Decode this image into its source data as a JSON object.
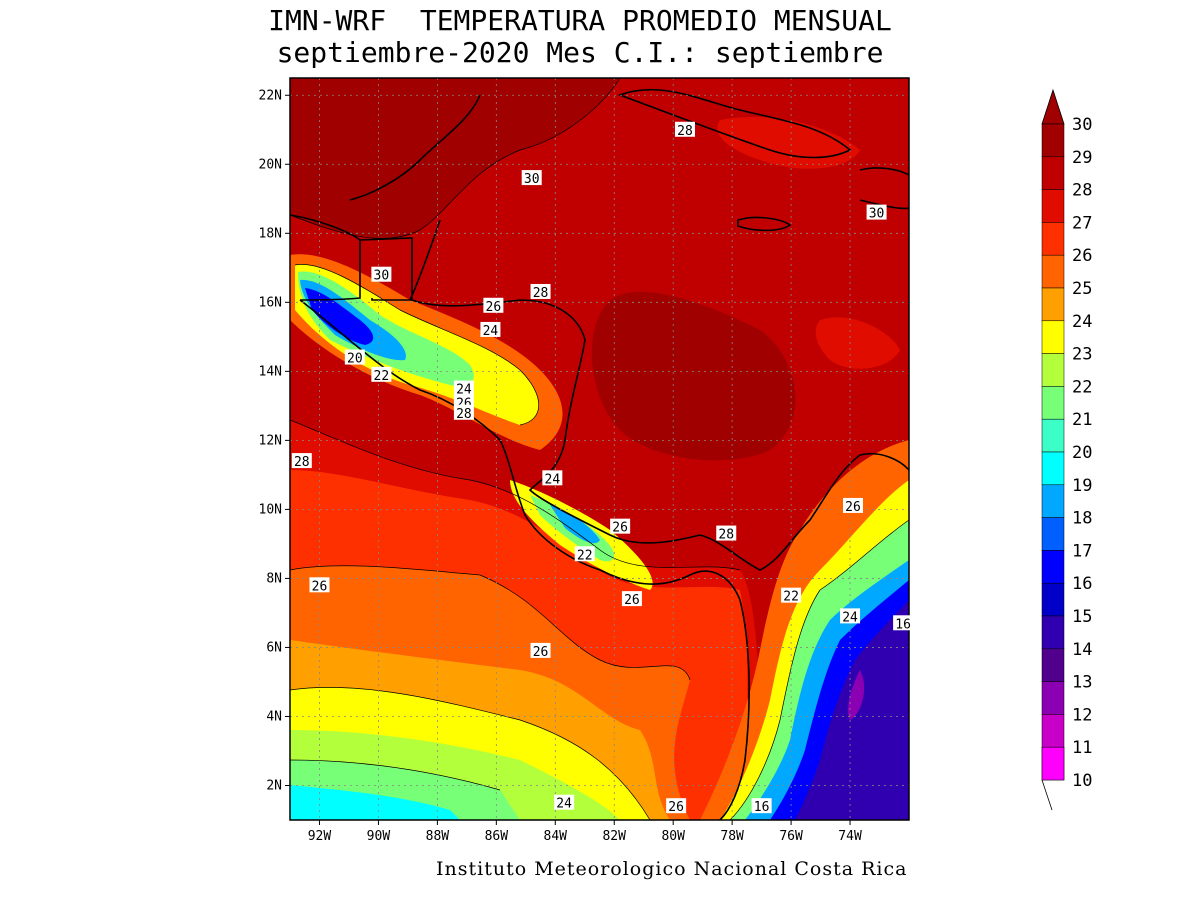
{
  "header": {
    "title_line1": "IMN-WRF  TEMPERATURA PROMEDIO MENSUAL",
    "title_line2": "septiembre-2020 Mes C.I.: septiembre"
  },
  "footer": {
    "credit": "Instituto Meteorologico Nacional Costa Rica"
  },
  "map": {
    "lon_range": [
      -93,
      -72
    ],
    "lat_range": [
      1,
      22.5
    ],
    "lon_ticks": [
      {
        "value": -92,
        "label": "92W"
      },
      {
        "value": -90,
        "label": "90W"
      },
      {
        "value": -88,
        "label": "88W"
      },
      {
        "value": -86,
        "label": "86W"
      },
      {
        "value": -84,
        "label": "84W"
      },
      {
        "value": -82,
        "label": "82W"
      },
      {
        "value": -80,
        "label": "80W"
      },
      {
        "value": -78,
        "label": "78W"
      },
      {
        "value": -76,
        "label": "76W"
      },
      {
        "value": -74,
        "label": "74W"
      }
    ],
    "lat_ticks": [
      {
        "value": 2,
        "label": "2N"
      },
      {
        "value": 4,
        "label": "4N"
      },
      {
        "value": 6,
        "label": "6N"
      },
      {
        "value": 8,
        "label": "8N"
      },
      {
        "value": 10,
        "label": "10N"
      },
      {
        "value": 12,
        "label": "12N"
      },
      {
        "value": 14,
        "label": "14N"
      },
      {
        "value": 16,
        "label": "16N"
      },
      {
        "value": 18,
        "label": "18N"
      },
      {
        "value": 20,
        "label": "20N"
      },
      {
        "value": 22,
        "label": "22N"
      }
    ],
    "contour_labels": [
      {
        "lon": -79.6,
        "lat": 21.0,
        "text": "28"
      },
      {
        "lon": -84.8,
        "lat": 19.6,
        "text": "30"
      },
      {
        "lon": -73.1,
        "lat": 18.6,
        "text": "30"
      },
      {
        "lon": -89.9,
        "lat": 16.8,
        "text": "30"
      },
      {
        "lon": -84.5,
        "lat": 16.3,
        "text": "28"
      },
      {
        "lon": -86.1,
        "lat": 15.9,
        "text": "26"
      },
      {
        "lon": -86.2,
        "lat": 15.2,
        "text": "24"
      },
      {
        "lon": -90.8,
        "lat": 14.4,
        "text": "20"
      },
      {
        "lon": -89.9,
        "lat": 13.9,
        "text": "22"
      },
      {
        "lon": -87.1,
        "lat": 13.5,
        "text": "24"
      },
      {
        "lon": -87.1,
        "lat": 13.1,
        "text": "26"
      },
      {
        "lon": -87.1,
        "lat": 12.8,
        "text": "28"
      },
      {
        "lon": -92.6,
        "lat": 11.4,
        "text": "28"
      },
      {
        "lon": -84.1,
        "lat": 10.9,
        "text": "24"
      },
      {
        "lon": -73.9,
        "lat": 10.1,
        "text": "26"
      },
      {
        "lon": -81.8,
        "lat": 9.5,
        "text": "26"
      },
      {
        "lon": -83.0,
        "lat": 8.7,
        "text": "22"
      },
      {
        "lon": -78.2,
        "lat": 9.3,
        "text": "28"
      },
      {
        "lon": -92.0,
        "lat": 7.8,
        "text": "26"
      },
      {
        "lon": -76.0,
        "lat": 7.5,
        "text": "22"
      },
      {
        "lon": -81.4,
        "lat": 7.4,
        "text": "26"
      },
      {
        "lon": -74.0,
        "lat": 6.9,
        "text": "24"
      },
      {
        "lon": -72.2,
        "lat": 6.7,
        "text": "16"
      },
      {
        "lon": -84.5,
        "lat": 5.9,
        "text": "26"
      },
      {
        "lon": -83.7,
        "lat": 1.5,
        "text": "24"
      },
      {
        "lon": -79.9,
        "lat": 1.4,
        "text": "26"
      },
      {
        "lon": -77.0,
        "lat": 1.4,
        "text": "16"
      }
    ]
  },
  "colorbar": {
    "levels": [
      {
        "label": "30",
        "color": "#a00000"
      },
      {
        "label": "29",
        "color": "#c00000"
      },
      {
        "label": "28",
        "color": "#e00c00"
      },
      {
        "label": "27",
        "color": "#ff3000"
      },
      {
        "label": "26",
        "color": "#ff6400"
      },
      {
        "label": "25",
        "color": "#ffa000"
      },
      {
        "label": "24",
        "color": "#ffff00"
      },
      {
        "label": "23",
        "color": "#b4ff3c"
      },
      {
        "label": "22",
        "color": "#78ff78"
      },
      {
        "label": "21",
        "color": "#3cffc8"
      },
      {
        "label": "20",
        "color": "#00ffff"
      },
      {
        "label": "19",
        "color": "#00a8ff"
      },
      {
        "label": "18",
        "color": "#0060ff"
      },
      {
        "label": "17",
        "color": "#0000ff"
      },
      {
        "label": "16",
        "color": "#0000c8"
      },
      {
        "label": "15",
        "color": "#3000b0"
      },
      {
        "label": "14",
        "color": "#50008c"
      },
      {
        "label": "13",
        "color": "#8c00b4"
      },
      {
        "label": "12",
        "color": "#c800c8"
      },
      {
        "label": "11",
        "color": "#ff00ff"
      },
      {
        "label": "10",
        "color": "#ff50ff"
      }
    ],
    "bottom_color": "#ffa8ff"
  }
}
